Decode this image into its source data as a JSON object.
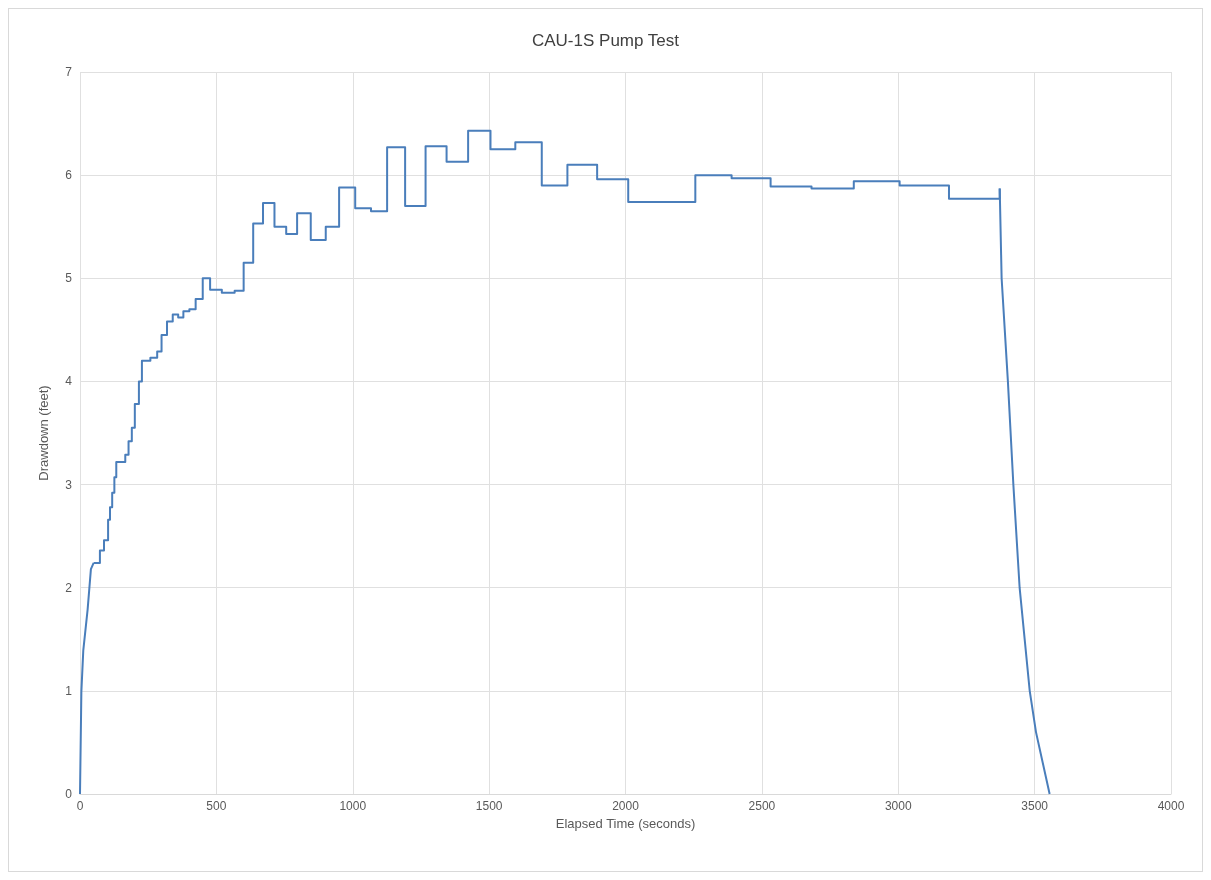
{
  "chart_data": {
    "type": "step",
    "title": "CAU-1S Pump Test",
    "xlabel": "Elapsed Time (seconds)",
    "ylabel": "Drawdown (feet)",
    "series": [
      {
        "type": "line",
        "color": "#4a7ebb",
        "x": [
          0,
          5,
          12,
          28,
          40,
          50
        ],
        "values": [
          0,
          0.99,
          1.39,
          1.79,
          2.18,
          2.24
        ]
      },
      {
        "color": "#4a7ebb",
        "x": [
          50,
          73,
          88,
          103,
          110,
          118,
          126,
          133,
          166,
          178,
          190,
          201,
          216,
          227,
          258,
          283,
          299,
          319,
          340,
          360,
          379,
          401,
          424,
          450,
          477,
          520,
          567,
          600,
          635,
          671,
          713,
          756,
          796,
          846,
          901,
          950,
          1009,
          1067,
          1126,
          1192,
          1267,
          1344,
          1423,
          1505,
          1596,
          1693,
          1787,
          1896,
          2010,
          2256,
          2389,
          2532,
          2682,
          2837,
          3005,
          3186,
          3372
        ],
        "values": [
          2.24,
          2.36,
          2.46,
          2.66,
          2.78,
          2.92,
          3.07,
          3.22,
          3.29,
          3.42,
          3.55,
          3.78,
          4.0,
          4.2,
          4.23,
          4.29,
          4.45,
          4.58,
          4.65,
          4.62,
          4.68,
          4.7,
          4.8,
          5.0,
          4.89,
          4.86,
          4.88,
          5.15,
          5.53,
          5.73,
          5.5,
          5.43,
          5.63,
          5.37,
          5.5,
          5.88,
          5.68,
          5.65,
          6.27,
          5.7,
          6.28,
          6.13,
          6.43,
          6.25,
          6.32,
          5.9,
          6.1,
          5.96,
          5.74,
          6.0,
          5.97,
          5.89,
          5.87,
          5.94,
          5.9,
          5.77,
          5.87
        ]
      },
      {
        "type": "line",
        "color": "#4a7ebb",
        "x": [
          3372,
          3379,
          3402,
          3422,
          3445,
          3482,
          3505,
          3555
        ],
        "values": [
          5.87,
          5.0,
          4.0,
          3.0,
          2.0,
          1.0,
          0.6,
          0
        ]
      }
    ],
    "xlim": [
      0,
      4000
    ],
    "xticks": [
      0,
      500,
      1000,
      1500,
      2000,
      2500,
      3000,
      3500,
      4000
    ],
    "ylim": [
      0,
      7
    ],
    "yticks": [
      0,
      1,
      2,
      3,
      4,
      5,
      6,
      7
    ],
    "grid": true,
    "marker": "none",
    "line_style": "solid"
  }
}
